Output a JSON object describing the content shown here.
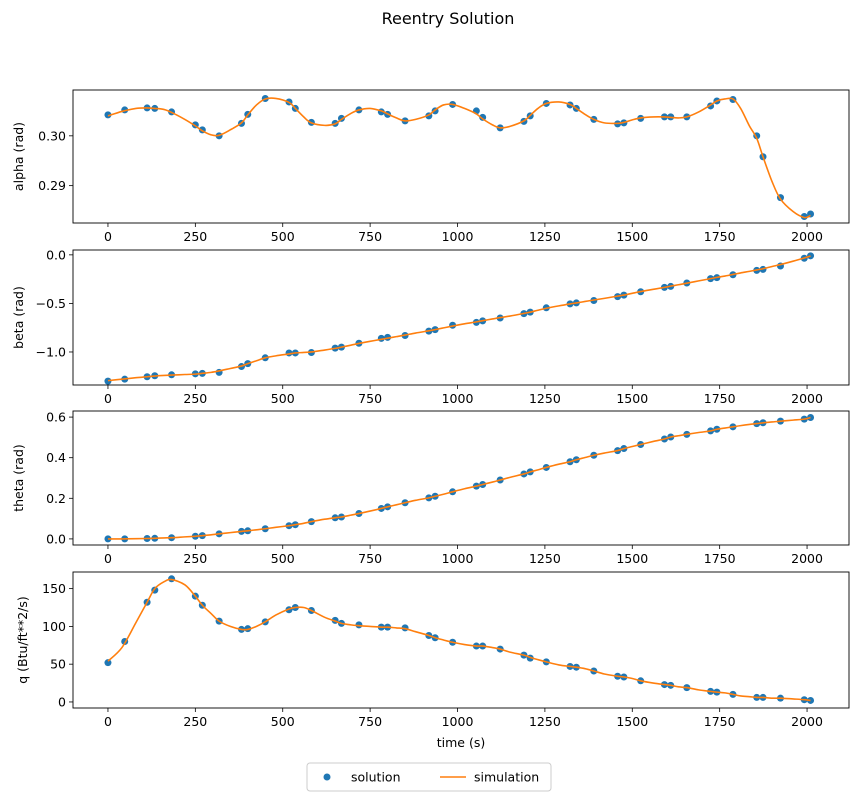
{
  "chart_data": {
    "type": "line",
    "title": "Reentry Solution",
    "xlabel": "time (s)",
    "xlim": [
      -100,
      2120
    ],
    "xticks": [
      0,
      250,
      500,
      750,
      1000,
      1250,
      1500,
      1750,
      2000
    ],
    "legend": {
      "placement": "bottom-center",
      "ncol": 2,
      "entries": [
        {
          "label": "solution",
          "marker": "circle",
          "color": "#1f77b4"
        },
        {
          "label": "simulation",
          "marker": "line",
          "color": "#ff7f0e"
        }
      ]
    },
    "solution_times": [
      0,
      48,
      112,
      134,
      182,
      250,
      270,
      318,
      382,
      400,
      450,
      518,
      536,
      582,
      650,
      668,
      718,
      782,
      800,
      850,
      918,
      936,
      986,
      1054,
      1072,
      1122,
      1190,
      1208,
      1254,
      1322,
      1340,
      1390,
      1458,
      1476,
      1524,
      1592,
      1610,
      1656,
      1724,
      1742,
      1788,
      1856,
      1874,
      1924,
      1992,
      2010
    ],
    "simulation_times": [
      0,
      40,
      80,
      112,
      134,
      160,
      182,
      220,
      250,
      270,
      295,
      318,
      350,
      382,
      400,
      425,
      450,
      480,
      518,
      536,
      560,
      582,
      620,
      650,
      668,
      695,
      718,
      750,
      782,
      800,
      825,
      850,
      880,
      918,
      936,
      960,
      986,
      1020,
      1054,
      1072,
      1100,
      1122,
      1150,
      1190,
      1208,
      1230,
      1254,
      1290,
      1322,
      1340,
      1365,
      1390,
      1420,
      1458,
      1476,
      1500,
      1524,
      1560,
      1592,
      1610,
      1632,
      1656,
      1690,
      1724,
      1742,
      1765,
      1788,
      1810,
      1835,
      1856,
      1874,
      1900,
      1924,
      1960,
      1992,
      2010
    ],
    "subplots": [
      {
        "ylabel": "alpha (rad)",
        "ylim": [
          0.2825,
          0.3092
        ],
        "yticks": [
          0.29,
          0.3
        ],
        "yticklabels": [
          "0.29",
          "0.30"
        ],
        "solution": [
          0.3042,
          0.3052,
          0.3056,
          0.3055,
          0.3048,
          0.3022,
          0.3012,
          0.3,
          0.3025,
          0.3043,
          0.3075,
          0.3068,
          0.3055,
          0.3027,
          0.3025,
          0.3035,
          0.3052,
          0.3048,
          0.3043,
          0.303,
          0.304,
          0.305,
          0.3063,
          0.305,
          0.3037,
          0.3016,
          0.3029,
          0.304,
          0.3065,
          0.3062,
          0.3055,
          0.3033,
          0.3024,
          0.3026,
          0.3035,
          0.3038,
          0.3038,
          0.3038,
          0.306,
          0.307,
          0.3073,
          0.3,
          0.2958,
          0.2876,
          0.2838,
          0.2843
        ],
        "simulation": [
          0.304,
          0.3049,
          0.3055,
          0.3056,
          0.3055,
          0.3053,
          0.3047,
          0.3033,
          0.302,
          0.301,
          0.3002,
          0.3001,
          0.3012,
          0.3026,
          0.3042,
          0.3062,
          0.3074,
          0.3075,
          0.3067,
          0.3055,
          0.3038,
          0.3026,
          0.3021,
          0.3024,
          0.3033,
          0.3045,
          0.3052,
          0.3055,
          0.305,
          0.3044,
          0.3036,
          0.303,
          0.3033,
          0.3042,
          0.3052,
          0.3062,
          0.3063,
          0.3055,
          0.3044,
          0.3034,
          0.3022,
          0.3016,
          0.3019,
          0.303,
          0.3041,
          0.3055,
          0.3065,
          0.3068,
          0.3063,
          0.3055,
          0.3043,
          0.3033,
          0.3026,
          0.3025,
          0.3027,
          0.3032,
          0.3036,
          0.3038,
          0.3038,
          0.3037,
          0.3036,
          0.3038,
          0.3048,
          0.3062,
          0.307,
          0.3074,
          0.3074,
          0.3055,
          0.302,
          0.2995,
          0.2958,
          0.2908,
          0.2873,
          0.2848,
          0.2836,
          0.284
        ]
      },
      {
        "ylabel": "beta (rad)",
        "ylim": [
          -1.34,
          0.05
        ],
        "yticks": [
          -1.0,
          -0.5,
          0.0
        ],
        "yticklabels": [
          "−1.0",
          "−0.5",
          "0.0"
        ],
        "solution": [
          -1.3,
          -1.28,
          -1.255,
          -1.245,
          -1.235,
          -1.225,
          -1.22,
          -1.21,
          -1.15,
          -1.12,
          -1.06,
          -1.01,
          -1.01,
          -1.005,
          -0.96,
          -0.95,
          -0.91,
          -0.86,
          -0.85,
          -0.83,
          -0.785,
          -0.77,
          -0.725,
          -0.695,
          -0.68,
          -0.65,
          -0.605,
          -0.59,
          -0.545,
          -0.505,
          -0.495,
          -0.47,
          -0.43,
          -0.415,
          -0.38,
          -0.335,
          -0.325,
          -0.29,
          -0.245,
          -0.235,
          -0.205,
          -0.16,
          -0.15,
          -0.115,
          -0.035,
          -0.01
        ],
        "simulation": [
          -1.295,
          -1.28,
          -1.265,
          -1.255,
          -1.248,
          -1.242,
          -1.238,
          -1.232,
          -1.228,
          -1.22,
          -1.21,
          -1.195,
          -1.17,
          -1.145,
          -1.12,
          -1.09,
          -1.06,
          -1.04,
          -1.02,
          -1.01,
          -1.005,
          -1.0,
          -0.98,
          -0.963,
          -0.95,
          -0.93,
          -0.912,
          -0.89,
          -0.87,
          -0.858,
          -0.842,
          -0.826,
          -0.805,
          -0.782,
          -0.77,
          -0.752,
          -0.733,
          -0.71,
          -0.69,
          -0.678,
          -0.66,
          -0.646,
          -0.63,
          -0.603,
          -0.59,
          -0.57,
          -0.55,
          -0.525,
          -0.505,
          -0.495,
          -0.48,
          -0.465,
          -0.448,
          -0.425,
          -0.414,
          -0.396,
          -0.378,
          -0.355,
          -0.335,
          -0.322,
          -0.308,
          -0.292,
          -0.268,
          -0.245,
          -0.232,
          -0.218,
          -0.202,
          -0.186,
          -0.17,
          -0.155,
          -0.143,
          -0.12,
          -0.1,
          -0.065,
          -0.032,
          -0.012
        ]
      },
      {
        "ylabel": "theta (rad)",
        "ylim": [
          -0.03,
          0.63
        ],
        "yticks": [
          0.0,
          0.2,
          0.4,
          0.6
        ],
        "yticklabels": [
          "0.0",
          "0.2",
          "0.4",
          "0.6"
        ],
        "solution": [
          0.0,
          0.0,
          0.002,
          0.003,
          0.006,
          0.013,
          0.016,
          0.025,
          0.037,
          0.04,
          0.05,
          0.065,
          0.07,
          0.085,
          0.104,
          0.108,
          0.125,
          0.15,
          0.158,
          0.178,
          0.202,
          0.21,
          0.232,
          0.26,
          0.268,
          0.29,
          0.32,
          0.33,
          0.352,
          0.38,
          0.39,
          0.412,
          0.435,
          0.445,
          0.465,
          0.492,
          0.502,
          0.515,
          0.532,
          0.54,
          0.552,
          0.568,
          0.572,
          0.58,
          0.59,
          0.598
        ],
        "simulation": [
          0.0,
          0.0,
          0.001,
          0.002,
          0.003,
          0.005,
          0.006,
          0.01,
          0.013,
          0.016,
          0.02,
          0.025,
          0.031,
          0.037,
          0.04,
          0.045,
          0.05,
          0.057,
          0.065,
          0.07,
          0.077,
          0.085,
          0.097,
          0.104,
          0.108,
          0.117,
          0.125,
          0.137,
          0.15,
          0.158,
          0.168,
          0.178,
          0.19,
          0.202,
          0.21,
          0.22,
          0.232,
          0.247,
          0.26,
          0.268,
          0.28,
          0.29,
          0.303,
          0.32,
          0.33,
          0.34,
          0.352,
          0.368,
          0.38,
          0.39,
          0.401,
          0.412,
          0.423,
          0.435,
          0.445,
          0.455,
          0.465,
          0.48,
          0.492,
          0.502,
          0.508,
          0.515,
          0.524,
          0.532,
          0.54,
          0.546,
          0.552,
          0.558,
          0.564,
          0.568,
          0.572,
          0.576,
          0.58,
          0.585,
          0.59,
          0.598
        ]
      },
      {
        "ylabel": "q (Btu/ft**2/s)",
        "ylim": [
          -8,
          172
        ],
        "yticks": [
          0,
          50,
          100,
          150
        ],
        "yticklabels": [
          "0",
          "50",
          "100",
          "150"
        ],
        "solution": [
          52,
          80,
          132,
          148,
          163,
          140,
          128,
          107,
          96,
          97,
          106,
          122,
          125,
          121,
          108,
          104,
          102,
          99,
          99,
          98,
          88,
          85,
          79,
          74,
          74,
          70,
          62,
          58,
          53,
          47,
          46,
          41,
          34,
          33,
          28,
          23,
          22,
          19,
          14,
          13,
          10,
          6,
          6,
          5,
          3,
          2
        ],
        "simulation": [
          54,
          72,
          105,
          132,
          150,
          159,
          162,
          155,
          140,
          128,
          117,
          107,
          100,
          96,
          96,
          100,
          106,
          115,
          123,
          125,
          125,
          121,
          112,
          107,
          104,
          102,
          101,
          100,
          99,
          99,
          98,
          97,
          93,
          88,
          85,
          82,
          79,
          76,
          74,
          74,
          72,
          70,
          66,
          62,
          59,
          56,
          53,
          49,
          47,
          46,
          44,
          41,
          37,
          34,
          33,
          31,
          28,
          25,
          23,
          22,
          20,
          19,
          16,
          14,
          13,
          12,
          10,
          8,
          7,
          6,
          6,
          5,
          5,
          4,
          3,
          2
        ]
      }
    ]
  }
}
